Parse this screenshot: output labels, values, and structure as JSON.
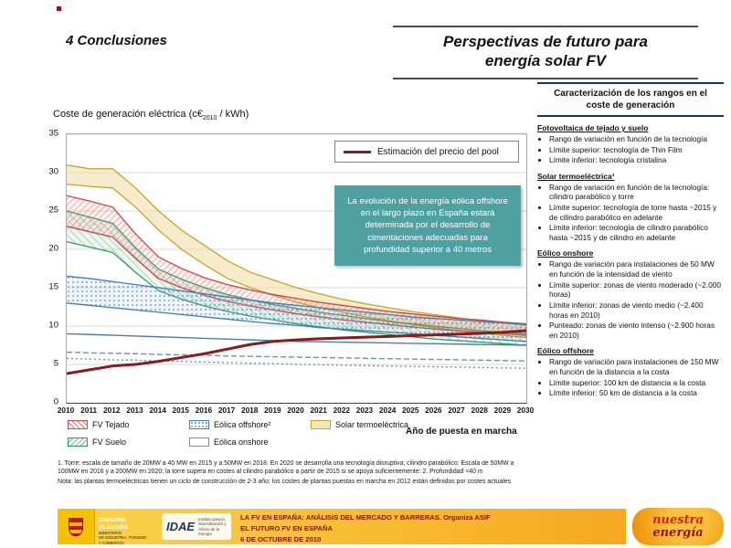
{
  "header": {
    "section": "4 Conclusiones",
    "title_line1": "Perspectivas de futuro para",
    "title_line2": "energía solar FV"
  },
  "chart": {
    "title_prefix": "Coste de generación eléctrica (c€",
    "title_sub": "2010",
    "title_suffix": " / kWh)",
    "pool_legend": "Estimación del precio del pool",
    "x_axis_label": "Año de puesta en marcha"
  },
  "overlay_note": "La evolución de la energía eólica offshore en el largo plazo en España estará determinada por el desarrollo de cimentaciones adecuadas para profundidad superior a 40 metros",
  "legend": {
    "fv_tejado": "FV Tejado",
    "eolica_offshore": "Eólica offshore²",
    "solar_termo": "Solar termoeléctrica",
    "fv_suelo": "FV Suelo",
    "eolica_onshore": "Eólica onshore"
  },
  "footnotes": {
    "note1": "1. Torre: escala de tamaño de 20MW a 40 MW en 2015 y a 50MW en 2018. En 2020 se desarrolla una tecnología disruptiva; cilindro parabólico:  Escala de 50MW a 100MW en 2016 y a 200MW en 2020; la torre supera en costes al cilindro parabólico a partir de 2015 si se apoya suficientemente: 2. Profundidad <40 m",
    "note2": "Nota: las plantas termoeléctricas tienen un ciclo de construcción de 2-3 año:  los costes de plantas puestas en marcha en 2012 están definidos por costes actuales"
  },
  "sidebar": {
    "title": "Caracterización de los rangos en el coste de generación",
    "sections": [
      {
        "heading": "Fotovoltaica de tejado y suelo",
        "bullets": [
          "Rango de variación en función de la tecnología",
          "Límite superior: tecnología de Thin Film",
          "Límite inferior: tecnología cristalina"
        ]
      },
      {
        "heading": "Solar termoeléctrica¹",
        "bullets": [
          "Rango de variación en función de la tecnología: cilindro parabólico y torre",
          "Límite superior: tecnología de torre hasta ~2015 y de cilindro parabólico en adelante",
          "Límite inferior: tecnología de cilindro parabólico hasta ~2015 y de cilindro en adelante"
        ]
      },
      {
        "heading": "Eólico onshore",
        "bullets": [
          "Rango de variación para instalaciones de 50 MW en función de la intensidad de viento",
          "Límite superior: zonas de viento moderado (~2.000 horas)",
          "Límite inferior: zonas de viento medio (~2.400 horas en 2010)",
          "Punteado: zonas de viento intenso (~2.900 horas en 2010)"
        ]
      },
      {
        "heading": "Eólico offshore",
        "bullets": [
          "Rango de variación para instalaciones de 150 MW en función de la distancia a la costa",
          "Límite superior: 100 km de distancia a la costa",
          "Límite inferior: 50 km de distancia a la costa"
        ]
      }
    ]
  },
  "footer": {
    "gobierno": "GOBIERNO\nDE ESPAÑA",
    "ministerio": "MINISTERIO\nDE INDUSTRIA, TURISMO\nY COMERCIO",
    "idae": "IDAE",
    "idae_caption": "Instituto para la Diversificación y Ahorro de la Energía",
    "event_line1": "LA FV EN ESPAÑA: ANÁLISIS DEL MERCADO Y BARRERAS. Organiza ASIF",
    "event_line2": "EL FUTURO FV EN ESPAÑA",
    "event_line3": "6 DE OCTUBRE DE 2010",
    "brand_line1": "nuestra",
    "brand_line2": "energía"
  },
  "chart_data": {
    "type": "line",
    "title": "Coste de generación eléctrica (c€2010 / kWh)",
    "xlabel": "Año de puesta en marcha",
    "ylabel": "c€2010 / kWh",
    "ylim": [
      0,
      35
    ],
    "y_ticks": [
      0,
      5,
      10,
      15,
      20,
      25,
      30,
      35
    ],
    "grid": "horizontal",
    "legend_position": "below",
    "x": [
      2010,
      2011,
      2012,
      2013,
      2014,
      2015,
      2016,
      2017,
      2018,
      2019,
      2020,
      2021,
      2022,
      2023,
      2024,
      2025,
      2026,
      2027,
      2028,
      2029,
      2030
    ],
    "bands": [
      {
        "name": "Solar termoeléctrica",
        "stroke": "#c9a227",
        "fill": "rgba(238,220,160,0.55)",
        "upper": [
          31.0,
          30.5,
          30.5,
          28.0,
          25.0,
          22.5,
          20.5,
          18.5,
          17.0,
          16.0,
          15.0,
          14.2,
          13.5,
          12.9,
          12.4,
          11.9,
          11.5,
          11.1,
          10.7,
          10.4,
          10.1
        ],
        "lower": [
          28.5,
          28.2,
          28.0,
          25.5,
          22.5,
          20.0,
          18.0,
          16.2,
          15.0,
          14.0,
          13.1,
          12.4,
          11.8,
          11.2,
          10.7,
          10.2,
          9.8,
          9.4,
          9.1,
          8.8,
          8.5
        ]
      },
      {
        "name": "FV Suelo",
        "stroke": "#2e9e5b",
        "fill": "url(#hatch-green)",
        "upper": [
          25.0,
          24.2,
          23.4,
          20.2,
          17.4,
          16.1,
          15.0,
          14.1,
          13.4,
          12.8,
          12.3,
          11.8,
          11.4,
          11.0,
          10.6,
          10.3,
          10.0,
          9.7,
          9.4,
          9.2,
          9.0
        ],
        "lower": [
          21.0,
          20.3,
          19.6,
          17.0,
          14.6,
          13.5,
          12.6,
          11.9,
          11.3,
          10.8,
          10.3,
          9.9,
          9.5,
          9.2,
          8.9,
          8.6,
          8.3,
          8.1,
          7.9,
          7.7,
          7.5
        ]
      },
      {
        "name": "FV Tejado",
        "stroke": "#cc4444",
        "fill": "url(#hatch-red)",
        "upper": [
          27.0,
          26.3,
          25.5,
          22.0,
          19.0,
          17.5,
          16.3,
          15.4,
          14.7,
          14.1,
          13.6,
          13.1,
          12.7,
          12.3,
          11.9,
          11.6,
          11.3,
          11.0,
          10.8,
          10.5,
          10.3
        ],
        "lower": [
          23.0,
          22.3,
          21.6,
          18.8,
          16.2,
          15.0,
          14.0,
          13.2,
          12.6,
          12.1,
          11.6,
          11.2,
          10.8,
          10.5,
          10.2,
          9.9,
          9.6,
          9.4,
          9.2,
          9.0,
          8.8
        ]
      },
      {
        "name": "Eólica offshore",
        "stroke": "#3c7eb5",
        "fill": "url(#dots-blue)",
        "upper": [
          16.5,
          16.2,
          15.8,
          15.4,
          15.0,
          14.6,
          14.2,
          13.8,
          13.4,
          13.0,
          12.7,
          12.4,
          12.1,
          11.8,
          11.5,
          11.2,
          11.0,
          10.8,
          10.6,
          10.4,
          10.2
        ],
        "lower": [
          13.0,
          12.7,
          12.4,
          12.1,
          11.8,
          11.5,
          11.2,
          10.9,
          10.6,
          10.3,
          10.1,
          9.8,
          9.6,
          9.4,
          9.2,
          9.0,
          8.8,
          8.6,
          8.4,
          8.2,
          8.0
        ]
      }
    ],
    "lines": [
      {
        "name": "Eólica onshore superior (viento moderado ~2.000 horas)",
        "stroke": "#4a7fa5",
        "width": 1.4,
        "dash": "",
        "values": [
          9.0,
          8.9,
          8.8,
          8.7,
          8.6,
          8.5,
          8.4,
          8.3,
          8.2,
          8.1,
          8.0,
          7.95,
          7.9,
          7.85,
          7.8,
          7.75,
          7.7,
          7.65,
          7.6,
          7.55,
          7.5
        ]
      },
      {
        "name": "Eólica onshore inferior (viento medio ~2.400 horas)",
        "stroke": "#6e93a8",
        "width": 1.4,
        "dash": "6 3",
        "values": [
          6.6,
          6.5,
          6.45,
          6.4,
          6.3,
          6.25,
          6.2,
          6.1,
          6.05,
          6.0,
          5.95,
          5.9,
          5.85,
          5.8,
          5.75,
          5.7,
          5.65,
          5.6,
          5.55,
          5.5,
          5.45
        ]
      },
      {
        "name": "Eólica onshore punteado (viento intenso ~2.900 horas)",
        "stroke": "#6e93a8",
        "width": 1.4,
        "dash": "2 3",
        "values": [
          5.8,
          5.7,
          5.6,
          5.55,
          5.45,
          5.4,
          5.3,
          5.25,
          5.15,
          5.1,
          5.0,
          4.95,
          4.9,
          4.85,
          4.8,
          4.75,
          4.7,
          4.65,
          4.6,
          4.55,
          4.5
        ]
      },
      {
        "name": "Estimación del precio del pool",
        "stroke": "#8b1a1a",
        "width": 3,
        "dash": "",
        "values": [
          3.8,
          4.3,
          4.8,
          5.0,
          5.4,
          5.9,
          6.4,
          7.0,
          7.6,
          8.0,
          8.2,
          8.35,
          8.45,
          8.55,
          8.65,
          8.75,
          8.85,
          8.95,
          9.05,
          9.2,
          9.4
        ]
      }
    ]
  }
}
